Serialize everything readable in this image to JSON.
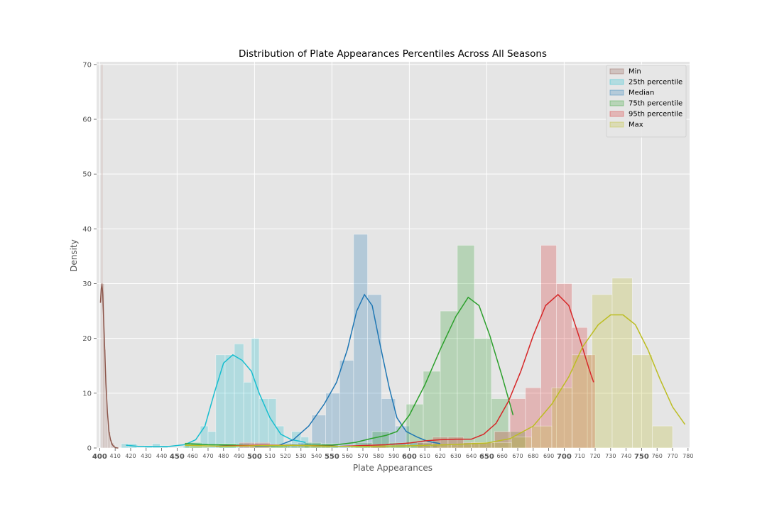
{
  "chart_data": {
    "type": "histogram",
    "title": "Distribution of Plate Appearances Percentiles Across All Seasons",
    "xlabel": "Plate Appearances",
    "ylabel": "Density",
    "xlim": [
      398,
      781
    ],
    "ylim": [
      0,
      70.5
    ],
    "grid": true,
    "legend_position": "top-right",
    "background": "#e5e5e5",
    "y_ticks": [
      0,
      10,
      20,
      30,
      40,
      50,
      60,
      70
    ],
    "x_ticks_major": [
      400,
      450,
      500,
      550,
      600,
      650,
      700,
      750
    ],
    "x_ticks_minor": [
      410,
      420,
      430,
      440,
      460,
      470,
      480,
      490,
      510,
      520,
      530,
      540,
      560,
      570,
      580,
      590,
      610,
      620,
      630,
      640,
      660,
      670,
      680,
      690,
      710,
      720,
      730,
      740,
      760,
      770,
      780
    ],
    "series": [
      {
        "name": "Min",
        "color": "#8c564b",
        "bars": [
          [
            401,
            402,
            70
          ],
          [
            402,
            403,
            30
          ],
          [
            403,
            404,
            18
          ],
          [
            404,
            405,
            10
          ],
          [
            405,
            406,
            5
          ],
          [
            406,
            407,
            3
          ],
          [
            407,
            408,
            1.5
          ],
          [
            408,
            409,
            1
          ],
          [
            409,
            410,
            0.6
          ]
        ],
        "kde": [
          [
            400.5,
            26.5
          ],
          [
            401,
            29
          ],
          [
            401.5,
            30
          ],
          [
            402,
            28
          ],
          [
            403,
            20
          ],
          [
            404,
            12
          ],
          [
            405,
            6.5
          ],
          [
            406,
            3
          ],
          [
            407,
            1.5
          ],
          [
            408,
            0.7
          ],
          [
            409,
            0.3
          ],
          [
            410,
            0.1
          ],
          [
            411,
            0.02
          ],
          [
            412,
            0
          ]
        ]
      },
      {
        "name": "25th percentile",
        "color": "#17becf",
        "bars": [
          [
            414,
            419,
            0.8
          ],
          [
            419,
            424,
            0.8
          ],
          [
            429,
            434,
            0.4
          ],
          [
            434,
            439,
            0.8
          ],
          [
            439,
            444,
            0.4
          ],
          [
            454,
            459,
            0.4
          ],
          [
            459,
            465,
            1
          ],
          [
            465,
            470,
            4
          ],
          [
            470,
            475,
            3
          ],
          [
            475,
            481,
            17
          ],
          [
            481,
            487,
            17
          ],
          [
            487,
            493,
            19
          ],
          [
            493,
            498,
            12
          ],
          [
            498,
            503,
            20
          ],
          [
            503,
            509,
            9
          ],
          [
            509,
            514,
            9
          ],
          [
            514,
            519,
            4
          ],
          [
            519,
            524,
            1
          ],
          [
            524,
            530,
            3
          ],
          [
            530,
            535,
            2
          ]
        ],
        "kde": [
          [
            417,
            0.5
          ],
          [
            425,
            0.3
          ],
          [
            435,
            0.3
          ],
          [
            445,
            0.3
          ],
          [
            455,
            0.6
          ],
          [
            462,
            1.5
          ],
          [
            468,
            4
          ],
          [
            474,
            10
          ],
          [
            480,
            15.5
          ],
          [
            486,
            17
          ],
          [
            492,
            16
          ],
          [
            498,
            14
          ],
          [
            503,
            10
          ],
          [
            510,
            5.5
          ],
          [
            517,
            2.5
          ],
          [
            524,
            1.5
          ],
          [
            530,
            1.2
          ],
          [
            533,
            1
          ]
        ]
      },
      {
        "name": "Median",
        "color": "#1f77b4",
        "bars": [
          [
            520,
            528,
            0.8
          ],
          [
            528,
            537,
            1
          ],
          [
            537,
            546,
            6
          ],
          [
            546,
            555,
            10
          ],
          [
            555,
            564,
            16
          ],
          [
            564,
            573,
            39
          ],
          [
            573,
            582,
            28
          ],
          [
            582,
            591,
            9
          ],
          [
            591,
            600,
            4
          ],
          [
            600,
            609,
            1
          ],
          [
            609,
            618,
            0.8
          ]
        ],
        "kde": [
          [
            500,
            0.3
          ],
          [
            515,
            0.4
          ],
          [
            525,
            1.5
          ],
          [
            535,
            4
          ],
          [
            545,
            8
          ],
          [
            553,
            12
          ],
          [
            560,
            18
          ],
          [
            566,
            25
          ],
          [
            571,
            28
          ],
          [
            576,
            26
          ],
          [
            581,
            19
          ],
          [
            587,
            11
          ],
          [
            592,
            5.5
          ],
          [
            598,
            3
          ],
          [
            605,
            2
          ],
          [
            612,
            1.2
          ],
          [
            620,
            0.8
          ]
        ]
      },
      {
        "name": "75th percentile",
        "color": "#2ca02c",
        "bars": [
          [
            455,
            466,
            1
          ],
          [
            477,
            488,
            0.8
          ],
          [
            510,
            521,
            0.5
          ],
          [
            532,
            543,
            1
          ],
          [
            543,
            554,
            0.8
          ],
          [
            565,
            576,
            1
          ],
          [
            576,
            587,
            3
          ],
          [
            587,
            598,
            1
          ],
          [
            598,
            609,
            8
          ],
          [
            609,
            620,
            14
          ],
          [
            620,
            631,
            25
          ],
          [
            631,
            642,
            37
          ],
          [
            642,
            653,
            20
          ],
          [
            653,
            664,
            9
          ],
          [
            664,
            675,
            3
          ]
        ],
        "kde": [
          [
            455,
            0.8
          ],
          [
            470,
            0.6
          ],
          [
            490,
            0.5
          ],
          [
            510,
            0.4
          ],
          [
            530,
            0.5
          ],
          [
            550,
            0.5
          ],
          [
            565,
            1
          ],
          [
            575,
            1.7
          ],
          [
            585,
            2.3
          ],
          [
            592,
            3
          ],
          [
            600,
            6
          ],
          [
            610,
            11.5
          ],
          [
            620,
            18
          ],
          [
            630,
            24
          ],
          [
            638,
            27.5
          ],
          [
            645,
            26
          ],
          [
            652,
            20.5
          ],
          [
            660,
            13
          ],
          [
            667,
            6
          ]
        ]
      },
      {
        "name": "95th percentile",
        "color": "#d62728",
        "bars": [
          [
            490,
            500,
            1
          ],
          [
            500,
            510,
            1
          ],
          [
            575,
            585,
            0.6
          ],
          [
            605,
            615,
            1
          ],
          [
            615,
            625,
            2
          ],
          [
            625,
            635,
            2
          ],
          [
            635,
            645,
            1
          ],
          [
            645,
            655,
            1
          ],
          [
            655,
            665,
            3
          ],
          [
            665,
            675,
            9
          ],
          [
            675,
            685,
            11
          ],
          [
            685,
            695,
            37
          ],
          [
            695,
            705,
            30
          ],
          [
            705,
            715,
            22
          ],
          [
            715,
            720,
            17
          ]
        ],
        "kde": [
          [
            475,
            0.3
          ],
          [
            500,
            0.5
          ],
          [
            525,
            0.5
          ],
          [
            555,
            0.3
          ],
          [
            585,
            0.6
          ],
          [
            600,
            0.9
          ],
          [
            610,
            1.3
          ],
          [
            620,
            1.5
          ],
          [
            630,
            1.6
          ],
          [
            640,
            1.6
          ],
          [
            648,
            2.5
          ],
          [
            656,
            4.5
          ],
          [
            664,
            8.5
          ],
          [
            672,
            14
          ],
          [
            680,
            20.5
          ],
          [
            688,
            26
          ],
          [
            696,
            28
          ],
          [
            703,
            26
          ],
          [
            710,
            20
          ],
          [
            716,
            14.5
          ],
          [
            719,
            12
          ]
        ]
      },
      {
        "name": "Max",
        "color": "#bcbd22",
        "bars": [
          [
            458,
            471,
            0.3
          ],
          [
            497,
            510,
            0.7
          ],
          [
            510,
            523,
            0.6
          ],
          [
            523,
            536,
            0.5
          ],
          [
            536,
            549,
            0.4
          ],
          [
            562,
            575,
            0.5
          ],
          [
            575,
            588,
            0.6
          ],
          [
            588,
            601,
            0.4
          ],
          [
            601,
            614,
            0.4
          ],
          [
            614,
            627,
            0.6
          ],
          [
            627,
            640,
            0.7
          ],
          [
            640,
            653,
            1
          ],
          [
            653,
            666,
            1
          ],
          [
            666,
            679,
            2
          ],
          [
            679,
            692,
            4
          ],
          [
            692,
            705,
            11
          ],
          [
            705,
            718,
            17
          ],
          [
            718,
            731,
            28
          ],
          [
            731,
            744,
            31
          ],
          [
            744,
            757,
            17
          ],
          [
            757,
            770,
            4
          ]
        ],
        "kde": [
          [
            455,
            0.5
          ],
          [
            480,
            0.3
          ],
          [
            500,
            0.4
          ],
          [
            525,
            0.5
          ],
          [
            550,
            0.3
          ],
          [
            575,
            0.3
          ],
          [
            600,
            0.4
          ],
          [
            625,
            0.6
          ],
          [
            650,
            0.9
          ],
          [
            665,
            1.7
          ],
          [
            680,
            4
          ],
          [
            692,
            8
          ],
          [
            703,
            13
          ],
          [
            712,
            18.5
          ],
          [
            722,
            22.5
          ],
          [
            730,
            24.3
          ],
          [
            738,
            24.3
          ],
          [
            746,
            22.5
          ],
          [
            754,
            18
          ],
          [
            762,
            12.5
          ],
          [
            770,
            7.5
          ],
          [
            778,
            4.3
          ]
        ]
      }
    ]
  }
}
